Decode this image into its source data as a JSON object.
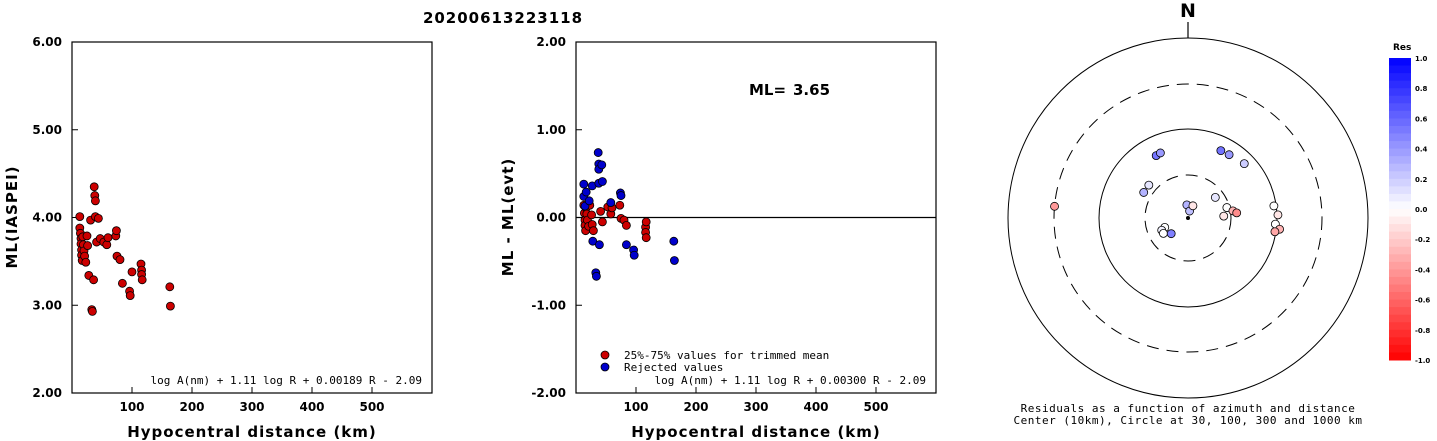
{
  "event_id": "20200613223118",
  "chart_data": [
    {
      "type": "scatter",
      "xlabel": "Hypocentral distance (km)",
      "ylabel": "ML(IASPEI)",
      "xlim": [
        0,
        600
      ],
      "ylim": [
        2.0,
        6.0
      ],
      "xticks": [
        "100",
        "200",
        "300",
        "400",
        "500"
      ],
      "xtick_values": [
        100,
        200,
        300,
        400,
        500
      ],
      "yticks": [
        "2.00",
        "3.00",
        "4.00",
        "5.00",
        "6.00"
      ],
      "ytick_values": [
        2,
        3,
        4,
        5,
        6
      ],
      "formula": "log A(nm) + 1.11 log R + 0.00189 R - 2.09",
      "marker_color": "#cc0000",
      "points": [
        [
          13,
          4.01
        ],
        [
          13,
          3.88
        ],
        [
          14,
          3.82
        ],
        [
          15,
          3.76
        ],
        [
          15,
          3.7
        ],
        [
          16,
          3.63
        ],
        [
          16,
          3.57
        ],
        [
          17,
          3.51
        ],
        [
          18,
          3.78
        ],
        [
          19,
          3.69
        ],
        [
          20,
          3.62
        ],
        [
          21,
          3.56
        ],
        [
          23,
          3.49
        ],
        [
          25,
          3.79
        ],
        [
          26,
          3.68
        ],
        [
          28,
          3.34
        ],
        [
          31,
          3.97
        ],
        [
          33,
          2.95
        ],
        [
          34,
          2.93
        ],
        [
          36,
          3.29
        ],
        [
          37,
          4.35
        ],
        [
          38,
          4.25
        ],
        [
          39,
          4.19
        ],
        [
          39,
          4.01
        ],
        [
          41,
          3.72
        ],
        [
          44,
          3.99
        ],
        [
          47,
          3.76
        ],
        [
          53,
          3.72
        ],
        [
          58,
          3.69
        ],
        [
          60,
          3.77
        ],
        [
          73,
          3.79
        ],
        [
          74,
          3.85
        ],
        [
          75,
          3.56
        ],
        [
          80,
          3.52
        ],
        [
          84,
          3.25
        ],
        [
          96,
          3.16
        ],
        [
          97,
          3.11
        ],
        [
          100,
          3.38
        ],
        [
          115,
          3.47
        ],
        [
          116,
          3.4
        ],
        [
          116,
          3.35
        ],
        [
          117,
          3.29
        ],
        [
          163,
          3.21
        ],
        [
          164,
          2.99
        ]
      ]
    },
    {
      "type": "scatter",
      "xlabel": "Hypocentral distance (km)",
      "ylabel": "ML - ML(evt)",
      "xlim": [
        0,
        600
      ],
      "ylim": [
        -2.0,
        2.0
      ],
      "xticks": [
        "100",
        "200",
        "300",
        "400",
        "500"
      ],
      "xtick_values": [
        100,
        200,
        300,
        400,
        500
      ],
      "yticks": [
        "-2.00",
        "-1.00",
        "0.00",
        "1.00",
        "2.00"
      ],
      "ytick_values": [
        -2,
        -1,
        0,
        1,
        2
      ],
      "formula": "log A(nm) + 1.11 log R + 0.00300 R - 2.09",
      "ml_label": "ML=",
      "ml_value": "3.65",
      "legend": [
        {
          "label": "25%-75% values for trimmed mean",
          "color": "#cc0000"
        },
        {
          "label": "Rejected values",
          "color": "#0000cc"
        }
      ],
      "trimmed_points": [
        [
          13,
          0.14
        ],
        [
          14,
          0.05
        ],
        [
          15,
          -0.03
        ],
        [
          15,
          -0.09
        ],
        [
          16,
          -0.15
        ],
        [
          17,
          0.11
        ],
        [
          18,
          0.04
        ],
        [
          19,
          -0.03
        ],
        [
          21,
          -0.1
        ],
        [
          23,
          0.14
        ],
        [
          26,
          0.03
        ],
        [
          27,
          -0.08
        ],
        [
          29,
          -0.15
        ],
        [
          41,
          0.07
        ],
        [
          44,
          -0.05
        ],
        [
          53,
          0.12
        ],
        [
          58,
          0.04
        ],
        [
          60,
          0.11
        ],
        [
          73,
          0.14
        ],
        [
          75,
          -0.01
        ],
        [
          80,
          -0.03
        ],
        [
          84,
          -0.09
        ],
        [
          116,
          -0.11
        ],
        [
          116,
          -0.17
        ],
        [
          117,
          -0.23
        ],
        [
          117,
          -0.05
        ]
      ],
      "rejected_points": [
        [
          13,
          0.38
        ],
        [
          13,
          0.24
        ],
        [
          15,
          0.13
        ],
        [
          17,
          0.29
        ],
        [
          22,
          0.19
        ],
        [
          27,
          0.36
        ],
        [
          28,
          -0.27
        ],
        [
          33,
          -0.63
        ],
        [
          34,
          -0.67
        ],
        [
          37,
          0.74
        ],
        [
          38,
          0.61
        ],
        [
          38,
          0.55
        ],
        [
          38,
          0.39
        ],
        [
          39,
          -0.31
        ],
        [
          43,
          0.6
        ],
        [
          44,
          0.41
        ],
        [
          58,
          0.17
        ],
        [
          74,
          0.28
        ],
        [
          75,
          0.25
        ],
        [
          84,
          -0.31
        ],
        [
          96,
          -0.37
        ],
        [
          97,
          -0.43
        ],
        [
          163,
          -0.27
        ],
        [
          164,
          -0.49
        ]
      ]
    },
    {
      "type": "scatter",
      "north_label": "N",
      "caption_line1": "Residuals as a function of azimuth and distance",
      "caption_line2": "Center (10km), Circle at 30, 100, 300 and 1000 km",
      "colorbar_title": "Res",
      "colorbar_ticks": [
        "1.0",
        "0.8",
        "0.6",
        "0.4",
        "0.2",
        "0.0",
        "-0.2",
        "-0.4",
        "-0.6",
        "-0.8",
        "-1.0"
      ],
      "colorbar_tick_values": [
        1.0,
        0.8,
        0.6,
        0.4,
        0.2,
        0.0,
        -0.2,
        -0.4,
        -0.6,
        -0.8,
        -1.0
      ],
      "stations": [
        {
          "az": 275,
          "dist": 308,
          "res": -0.4
        },
        {
          "az": 333,
          "dist": 60,
          "res": 0.55
        },
        {
          "az": 337,
          "dist": 61,
          "res": 0.4
        },
        {
          "az": 300,
          "dist": 37,
          "res": 0.3
        },
        {
          "az": 310,
          "dist": 37,
          "res": 0.1
        },
        {
          "az": 26,
          "dist": 68,
          "res": 0.55
        },
        {
          "az": 33,
          "dist": 69,
          "res": 0.4
        },
        {
          "az": 46,
          "dist": 74,
          "res": 0.2
        },
        {
          "az": 355,
          "dist": 14,
          "res": 0.3
        },
        {
          "az": 13,
          "dist": 12,
          "res": 0.25
        },
        {
          "az": 22,
          "dist": 14,
          "res": -0.1
        },
        {
          "az": 248,
          "dist": 19,
          "res": 0.0
        },
        {
          "az": 245,
          "dist": 21,
          "res": 0.05
        },
        {
          "az": 238,
          "dist": 21,
          "res": 0.0
        },
        {
          "az": 227,
          "dist": 18,
          "res": 0.5
        },
        {
          "az": 53,
          "dist": 24,
          "res": 0.1
        },
        {
          "az": 75,
          "dist": 28,
          "res": 0.0
        },
        {
          "az": 87,
          "dist": 25,
          "res": -0.1
        },
        {
          "az": 81,
          "dist": 32,
          "res": -0.3
        },
        {
          "az": 84,
          "dist": 35,
          "res": -0.45
        },
        {
          "az": 82,
          "dist": 92,
          "res": 0.0
        },
        {
          "az": 88,
          "dist": 100,
          "res": -0.1
        },
        {
          "az": 94,
          "dist": 94,
          "res": 0.0
        },
        {
          "az": 97,
          "dist": 106,
          "res": -0.3
        },
        {
          "az": 99,
          "dist": 95,
          "res": -0.35
        }
      ]
    }
  ]
}
